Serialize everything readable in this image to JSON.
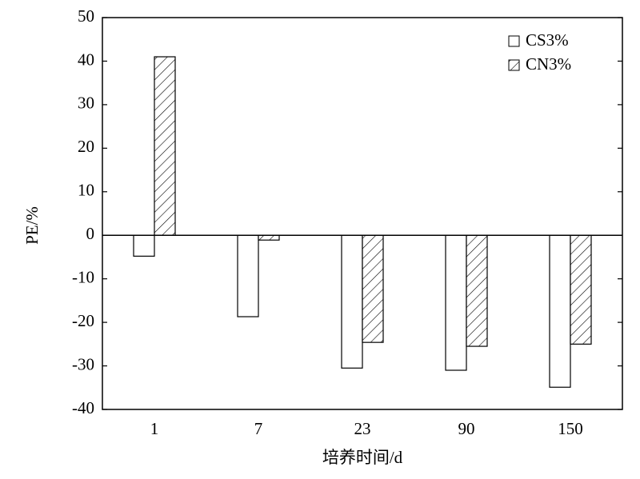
{
  "chart_data": {
    "type": "bar",
    "categories": [
      "1",
      "7",
      "23",
      "90",
      "150"
    ],
    "series": [
      {
        "name": "CS3%",
        "color": "#ffffff",
        "values": [
          -4.8,
          -18.7,
          -30.5,
          -31,
          -34.9
        ]
      },
      {
        "name": "CN3%",
        "color": "#ffffff",
        "pattern": "hatch",
        "values": [
          41,
          -1.1,
          -24.6,
          -25.5,
          -25
        ]
      }
    ],
    "ylim": [
      -40,
      50
    ],
    "yticks": [
      -40,
      -30,
      -20,
      -10,
      0,
      10,
      20,
      30,
      40,
      50
    ],
    "y_label": "PE/%",
    "x_label": "培养时间/d",
    "legend": "upper right"
  }
}
